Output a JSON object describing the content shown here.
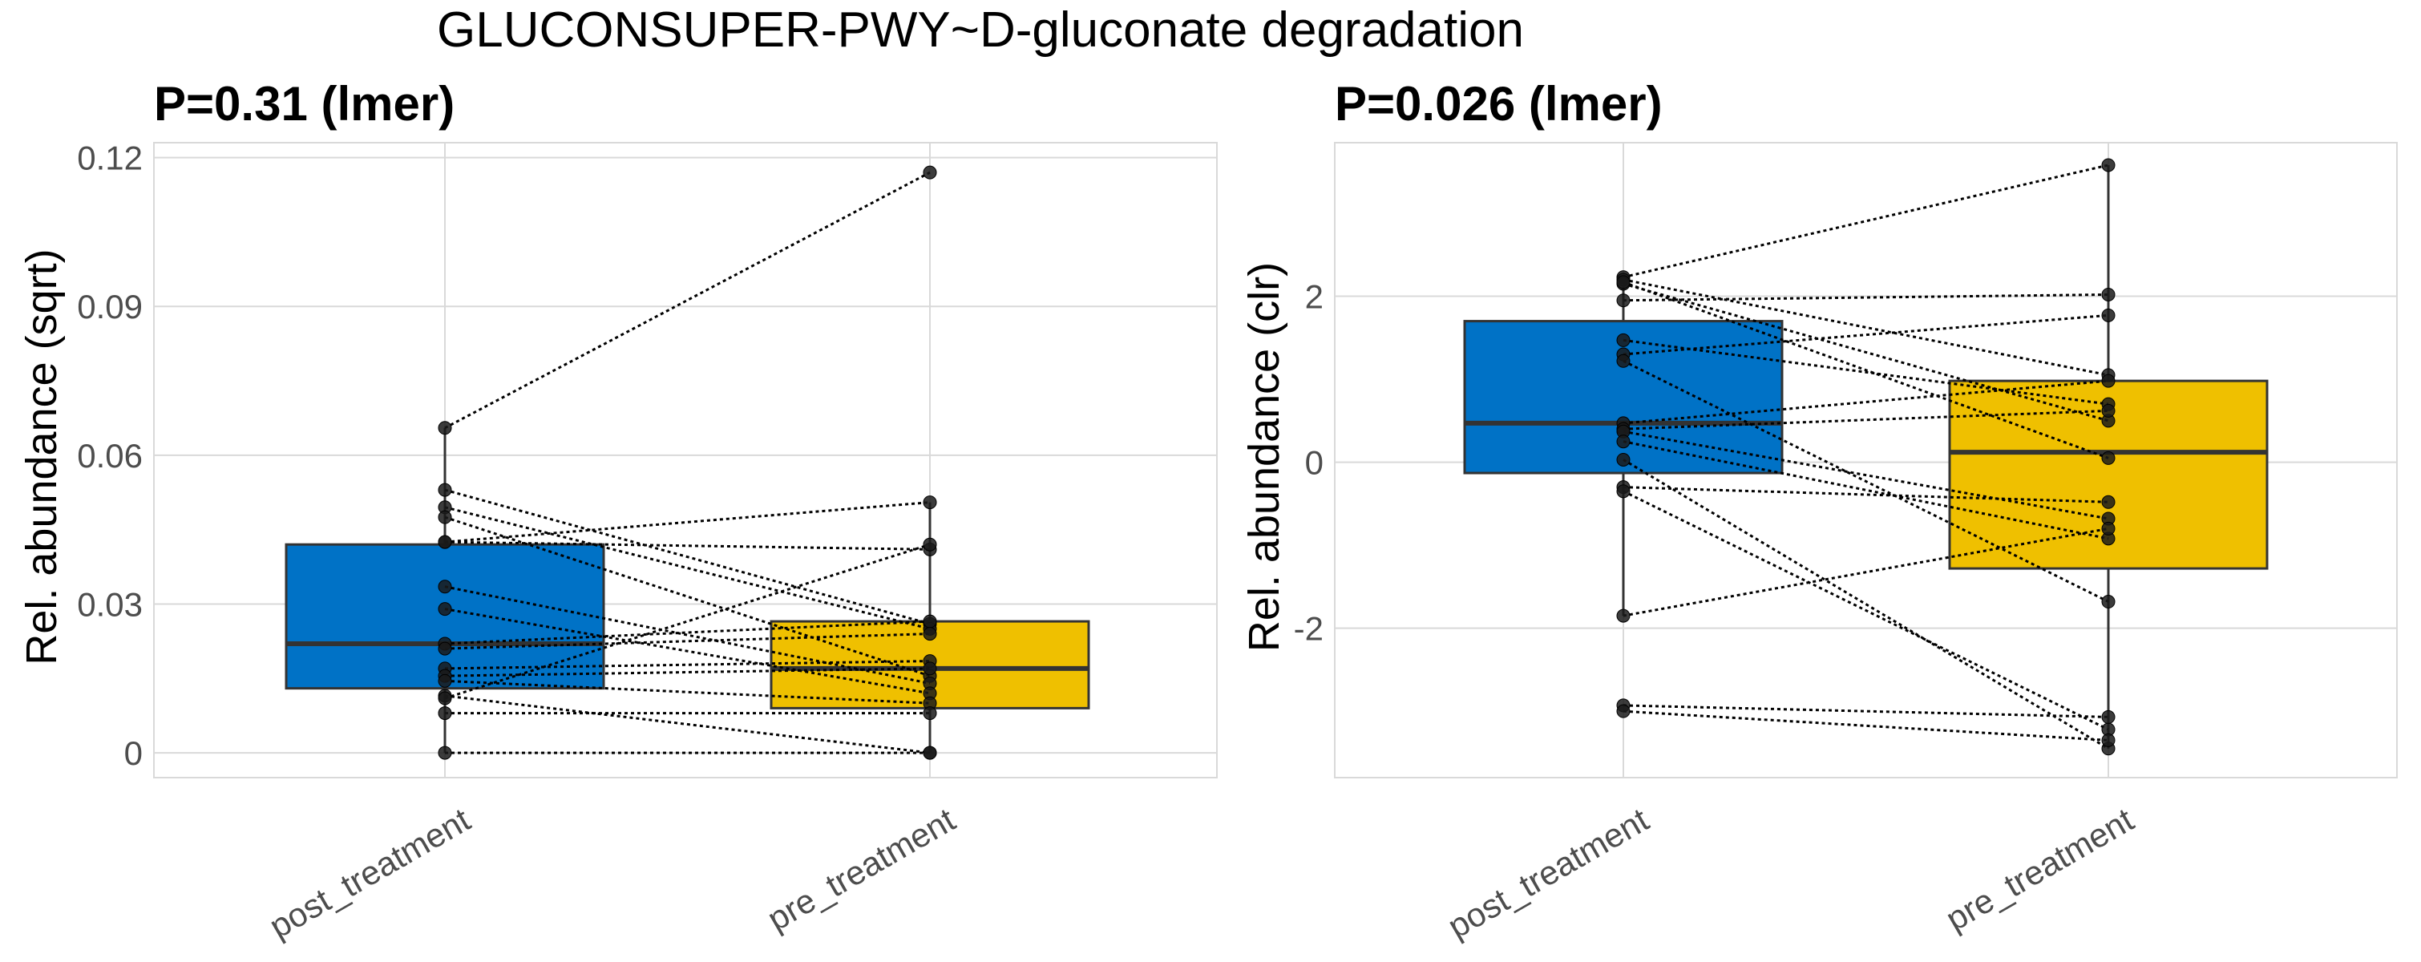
{
  "title": "GLUCONSUPER-PWY~D-gluconate degradation",
  "colors": {
    "post_treatment": "#0072C6",
    "pre_treatment": "#EFC000"
  },
  "chart_data": [
    {
      "type": "box",
      "title": "P=0.31 (lmer)",
      "ylabel": "Rel. abundance (sqrt)",
      "categories": [
        "post_treatment",
        "pre_treatment"
      ],
      "ylim": [
        -0.005,
        0.123
      ],
      "yticks": [
        0,
        0.03,
        0.06,
        0.09,
        0.12
      ],
      "ytick_labels": [
        "0",
        "0.03",
        "0.06",
        "0.09",
        "0.12"
      ],
      "grid": true,
      "boxes": [
        {
          "name": "post_treatment",
          "q1": 0.013,
          "median": 0.022,
          "q3": 0.042,
          "whisker_low": 0.0,
          "whisker_high": 0.0655
        },
        {
          "name": "pre_treatment",
          "q1": 0.009,
          "median": 0.017,
          "q3": 0.0265,
          "whisker_low": 0.0,
          "whisker_high": 0.0505
        }
      ],
      "pairs": [
        [
          0.0655,
          0.117
        ],
        [
          0.053,
          0.026
        ],
        [
          0.0495,
          0.025
        ],
        [
          0.0475,
          0.0155
        ],
        [
          0.0425,
          0.0505
        ],
        [
          0.0425,
          0.041
        ],
        [
          0.0335,
          0.014
        ],
        [
          0.029,
          0.012
        ],
        [
          0.022,
          0.0265
        ],
        [
          0.021,
          0.024
        ],
        [
          0.017,
          0.0185
        ],
        [
          0.0155,
          0.017
        ],
        [
          0.0145,
          0.01
        ],
        [
          0.0115,
          0.0
        ],
        [
          0.011,
          0.042
        ],
        [
          0.008,
          0.008
        ],
        [
          0.0,
          0.0
        ]
      ]
    },
    {
      "type": "box",
      "title": "P=0.026 (lmer)",
      "ylabel": "Rel. abundance (clr)",
      "categories": [
        "post_treatment",
        "pre_treatment"
      ],
      "ylim": [
        -3.8,
        3.85
      ],
      "yticks": [
        -2,
        0,
        2
      ],
      "ytick_labels": [
        "-2",
        "0",
        "2"
      ],
      "grid": true,
      "boxes": [
        {
          "name": "post_treatment",
          "q1": -0.13,
          "median": 0.47,
          "q3": 1.7,
          "whisker_low": -1.85,
          "whisker_high": 2.23
        },
        {
          "name": "pre_treatment",
          "q1": -1.28,
          "median": 0.12,
          "q3": 0.98,
          "whisker_low": -3.45,
          "whisker_high": 3.58
        }
      ],
      "pairs": [
        [
          2.23,
          3.58
        ],
        [
          2.2,
          1.05
        ],
        [
          2.15,
          0.5
        ],
        [
          2.17,
          0.05
        ],
        [
          1.95,
          2.02
        ],
        [
          1.47,
          0.7
        ],
        [
          1.3,
          1.77
        ],
        [
          1.22,
          -1.68
        ],
        [
          0.47,
          0.98
        ],
        [
          0.4,
          0.62
        ],
        [
          0.37,
          -0.68
        ],
        [
          0.25,
          -0.92
        ],
        [
          0.03,
          -3.45
        ],
        [
          -0.3,
          -0.48
        ],
        [
          -0.35,
          -3.22
        ],
        [
          -1.85,
          -0.8
        ],
        [
          -2.93,
          -3.07
        ],
        [
          -3.0,
          -3.35
        ]
      ]
    }
  ]
}
